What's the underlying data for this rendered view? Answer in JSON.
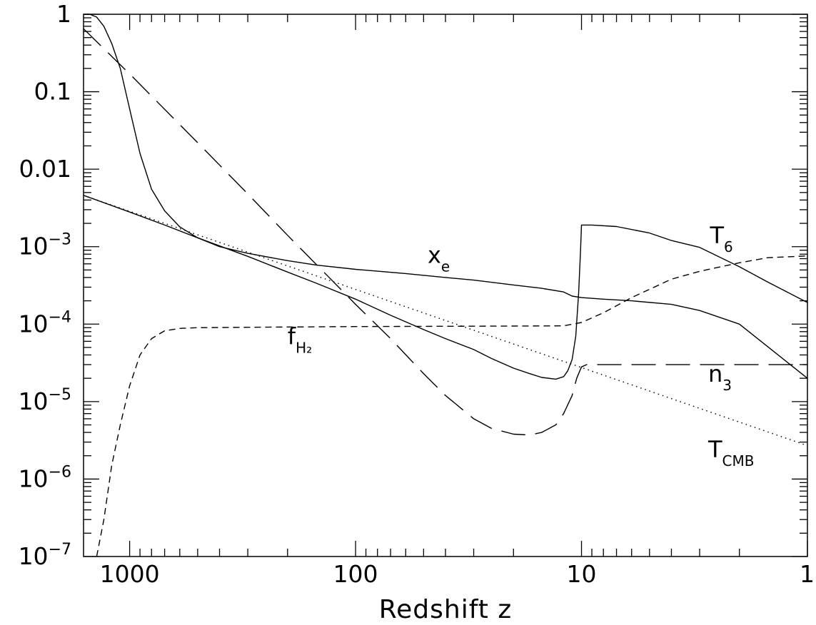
{
  "chart_data": {
    "type": "line",
    "title": "",
    "xlabel": "Redshift z",
    "ylabel": "",
    "x_scale": "log",
    "x_reversed": true,
    "y_scale": "log",
    "xlim": [
      1600,
      1
    ],
    "ylim": [
      1e-07,
      1
    ],
    "grid": false,
    "x_ticks": [
      {
        "value": 1000,
        "label": "1000"
      },
      {
        "value": 100,
        "label": "100"
      },
      {
        "value": 10,
        "label": "10"
      },
      {
        "value": 1,
        "label": "1"
      }
    ],
    "y_ticks": [
      {
        "value": 1,
        "label": "1"
      },
      {
        "value": 0.1,
        "label": "0.1"
      },
      {
        "value": 0.01,
        "label": "0.01"
      },
      {
        "value": 0.001,
        "base": "10",
        "exp": "−3"
      },
      {
        "value": 0.0001,
        "base": "10",
        "exp": "−4"
      },
      {
        "value": 1e-05,
        "base": "10",
        "exp": "−5"
      },
      {
        "value": 1e-06,
        "base": "10",
        "exp": "−6"
      },
      {
        "value": 1e-07,
        "base": "10",
        "exp": "−7"
      }
    ],
    "series": [
      {
        "name": "x_e",
        "label_main": "x",
        "label_sub": "e",
        "style": "solid",
        "label_at": [
          48,
          0.00062
        ],
        "points": [
          [
            1600,
            1.0
          ],
          [
            1500,
            1.0
          ],
          [
            1400,
            0.92
          ],
          [
            1300,
            0.7
          ],
          [
            1200,
            0.42
          ],
          [
            1100,
            0.2
          ],
          [
            1000,
            0.06
          ],
          [
            900,
            0.016
          ],
          [
            800,
            0.0055
          ],
          [
            700,
            0.0029
          ],
          [
            600,
            0.0018
          ],
          [
            500,
            0.0013
          ],
          [
            400,
            0.001
          ],
          [
            300,
            0.00082
          ],
          [
            200,
            0.00066
          ],
          [
            150,
            0.00058
          ],
          [
            100,
            0.00051
          ],
          [
            60,
            0.00045
          ],
          [
            40,
            0.0004
          ],
          [
            30,
            0.00037
          ],
          [
            20,
            0.00032
          ],
          [
            15,
            0.00029
          ],
          [
            12,
            0.00026
          ],
          [
            11,
            0.00023
          ],
          [
            10,
            0.00022
          ],
          [
            8,
            0.00021
          ],
          [
            6,
            0.0002
          ],
          [
            4,
            0.00018
          ],
          [
            3,
            0.00015
          ],
          [
            2,
            0.0001
          ],
          [
            1,
            2e-05
          ]
        ]
      },
      {
        "name": "T_6",
        "label_main": "T",
        "label_sub": "6",
        "style": "solid",
        "label_at": [
          2.7,
          0.0011
        ],
        "points": [
          [
            1600,
            0.0046
          ],
          [
            1000,
            0.0028
          ],
          [
            700,
            0.0019
          ],
          [
            500,
            0.0013
          ],
          [
            300,
            0.00075
          ],
          [
            200,
            0.00047
          ],
          [
            150,
            0.00034
          ],
          [
            100,
            0.00021
          ],
          [
            70,
            0.00013
          ],
          [
            50,
            8.5e-05
          ],
          [
            40,
            6.5e-05
          ],
          [
            30,
            4.7e-05
          ],
          [
            25,
            3.6e-05
          ],
          [
            20,
            2.7e-05
          ],
          [
            17,
            2.3e-05
          ],
          [
            15,
            2.05e-05
          ],
          [
            13,
            1.95e-05
          ],
          [
            12,
            2.1e-05
          ],
          [
            11.5,
            2.5e-05
          ],
          [
            11,
            3.5e-05
          ],
          [
            10.6,
            7e-05
          ],
          [
            10.3,
            0.00025
          ],
          [
            10.1,
            0.0009
          ],
          [
            10,
            0.0019
          ],
          [
            9,
            0.0019
          ],
          [
            7,
            0.00182
          ],
          [
            5,
            0.0015
          ],
          [
            4,
            0.0012
          ],
          [
            3,
            0.00098
          ],
          [
            2,
            0.00055
          ],
          [
            1.5,
            0.00035
          ],
          [
            1,
            0.00019
          ]
        ]
      },
      {
        "name": "T_CMB",
        "label_main": "T",
        "label_sub": "CMB",
        "style": "dotted",
        "label_at": [
          2.75,
          1.9e-06
        ],
        "points": [
          [
            1600,
            0.0046
          ],
          [
            1,
            2.7e-06
          ]
        ]
      },
      {
        "name": "f_H2",
        "label_main": "f",
        "label_sub": "H₂",
        "style": "short-dash",
        "label_at": [
          200,
          5.5e-05
        ],
        "points": [
          [
            1400,
            1e-07
          ],
          [
            1300,
            3e-07
          ],
          [
            1200,
            1.5e-06
          ],
          [
            1100,
            5e-06
          ],
          [
            1000,
            1.6e-05
          ],
          [
            900,
            4e-05
          ],
          [
            800,
            6.5e-05
          ],
          [
            700,
            8.2e-05
          ],
          [
            600,
            8.8e-05
          ],
          [
            500,
            9e-05
          ],
          [
            300,
            9.1e-05
          ],
          [
            100,
            9.3e-05
          ],
          [
            30,
            9.4e-05
          ],
          [
            12,
            9.5e-05
          ],
          [
            10,
            0.000105
          ],
          [
            8,
            0.00014
          ],
          [
            6,
            0.00022
          ],
          [
            4,
            0.00038
          ],
          [
            3,
            0.00048
          ],
          [
            2,
            0.00062
          ],
          [
            1.5,
            0.00072
          ],
          [
            1,
            0.00076
          ]
        ]
      },
      {
        "name": "n_3",
        "label_main": "n",
        "label_sub": "3",
        "style": "long-dash",
        "label_at": [
          2.75,
          1.8e-05
        ],
        "points": [
          [
            1600,
            0.65
          ],
          [
            1000,
            0.17
          ],
          [
            500,
            0.022
          ],
          [
            300,
            0.0048
          ],
          [
            200,
            0.0014
          ],
          [
            100,
            0.00018
          ],
          [
            70,
            6.5e-05
          ],
          [
            50,
            2.3e-05
          ],
          [
            40,
            1.2e-05
          ],
          [
            30,
            6e-06
          ],
          [
            25,
            4.5e-06
          ],
          [
            20,
            3.8e-06
          ],
          [
            17,
            3.7e-06
          ],
          [
            15,
            4e-06
          ],
          [
            13,
            5e-06
          ],
          [
            12,
            7e-06
          ],
          [
            11,
            1.2e-05
          ],
          [
            10.5,
            2e-05
          ],
          [
            10,
            2.8e-05
          ],
          [
            9.5,
            3e-05
          ],
          [
            1,
            3e-05
          ]
        ]
      }
    ]
  }
}
